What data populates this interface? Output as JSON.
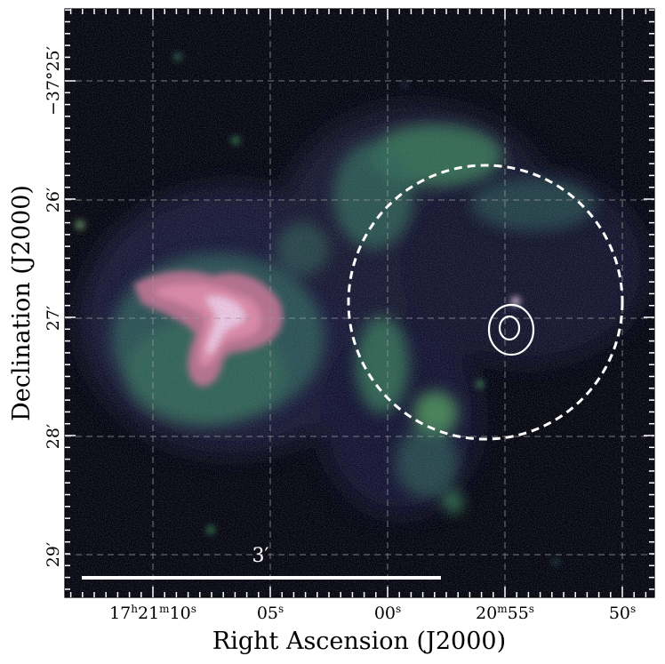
{
  "figure": {
    "xlabel": "Right Ascension (J2000)",
    "ylabel": "Declination (J2000)",
    "x_ticks": [
      {
        "h": "17",
        "m": "21",
        "s": "10",
        "kind": "hms"
      },
      {
        "s": "05",
        "kind": "s"
      },
      {
        "s": "00",
        "kind": "s"
      },
      {
        "m": "20",
        "s": "55",
        "kind": "ms"
      },
      {
        "s": "50",
        "kind": "s"
      }
    ],
    "y_ticks": [
      {
        "text": "−37°25′",
        "kind": "full"
      },
      {
        "text": "26′",
        "kind": "min"
      },
      {
        "text": "27′",
        "kind": "min"
      },
      {
        "text": "28′",
        "kind": "min"
      },
      {
        "text": "29′",
        "kind": "min"
      }
    ],
    "scale_bar_label": "3′",
    "colors": {
      "background": "#05050c",
      "diffuse": "#1c1a3a",
      "green": "#3c8c5a",
      "pink": "#e08aa6",
      "highlight": "#f3d2ea",
      "overlay": "#ffffff",
      "grid": "#9a9a9a"
    }
  }
}
